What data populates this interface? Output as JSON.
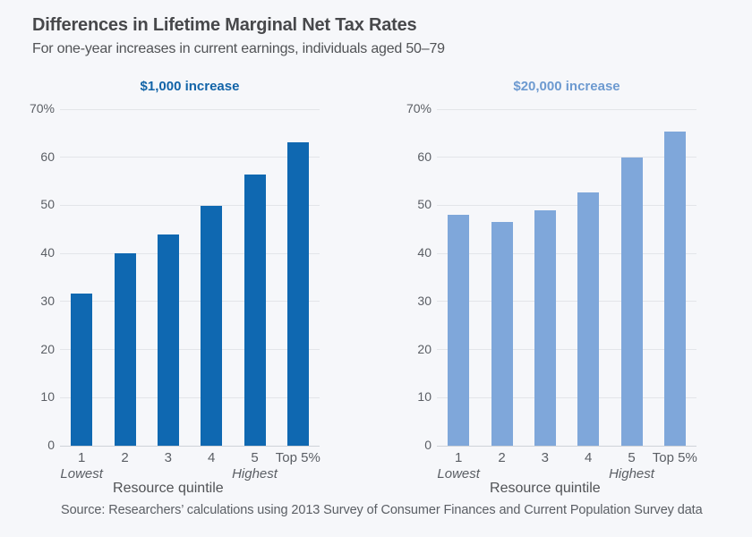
{
  "header": {
    "title": "Differences in Lifetime Marginal Net Tax Rates",
    "subtitle": "For one-year increases in current earnings, individuals aged 50–79"
  },
  "source_note": "Source: Researchers’ calculations using 2013 Survey of Consumer Finances and Current Population Survey data",
  "colors": {
    "background": "#f6f7fa",
    "title_text": "#47484b",
    "subtitle_text": "#515356",
    "axis_text": "#5a5e64",
    "gridline": "#e3e5e9",
    "zero_line": "#cfd3d8",
    "dark_blue_bar": "#0f68b1",
    "light_blue_bar": "#7fa7da",
    "left_title_blue": "#1264a8",
    "right_title_blue": "#6d9ad0"
  },
  "chart_data": [
    {
      "type": "bar",
      "title": "$1,000 increase",
      "title_color": "#1264a8",
      "bar_color": "#0f68b1",
      "categories": [
        "1",
        "2",
        "3",
        "4",
        "5",
        "Top 5%"
      ],
      "values": [
        31.7,
        40,
        44,
        49.9,
        56.5,
        63.2
      ],
      "xlabel": "Resource quintile",
      "first_category_sublabel": "Lowest",
      "fifth_category_sublabel": "Highest",
      "ylabel": "",
      "ylim": [
        0,
        70
      ],
      "ytick_step": 10,
      "ytick_top_suffix": "%",
      "grid": true,
      "legend": "none"
    },
    {
      "type": "bar",
      "title": "$20,000 increase",
      "title_color": "#6d9ad0",
      "bar_color": "#7fa7da",
      "categories": [
        "1",
        "2",
        "3",
        "4",
        "5",
        "Top 5%"
      ],
      "values": [
        48,
        46.5,
        49,
        52.6,
        60,
        65.4
      ],
      "xlabel": "Resource quintile",
      "first_category_sublabel": "Lowest",
      "fifth_category_sublabel": "Highest",
      "ylabel": "",
      "ylim": [
        0,
        70
      ],
      "ytick_step": 10,
      "ytick_top_suffix": "%",
      "grid": true,
      "legend": "none"
    }
  ]
}
